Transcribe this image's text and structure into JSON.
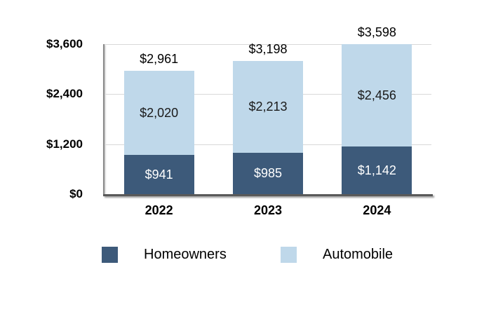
{
  "chart_data": {
    "type": "bar",
    "stacked": true,
    "categories": [
      "2022",
      "2023",
      "2024"
    ],
    "series": [
      {
        "name": "Homeowners",
        "color": "#3D5A7A",
        "label_color": "#FFFFFF",
        "values": [
          941,
          985,
          1142
        ],
        "labels": [
          "$941",
          "$985",
          "$1,142"
        ]
      },
      {
        "name": "Automobile",
        "color": "#BFD8EA",
        "label_color": "#1A1A1A",
        "values": [
          2020,
          2213,
          2456
        ],
        "labels": [
          "$2,020",
          "$2,213",
          "$2,456"
        ]
      }
    ],
    "totals": [
      2961,
      3198,
      3598
    ],
    "total_labels": [
      "$2,961",
      "$3,198",
      "$3,598"
    ],
    "y_axis": {
      "max": 3600,
      "ticks": [
        {
          "value": 0,
          "label": "$0"
        },
        {
          "value": 1200,
          "label": "$1,200"
        },
        {
          "value": 2400,
          "label": "$2,400"
        },
        {
          "value": 3600,
          "label": "$3,600"
        }
      ]
    },
    "grid": true,
    "legend_position": "bottom",
    "legend": [
      "Homeowners",
      "Automobile"
    ]
  },
  "colors": {
    "background": "#FFFFFF",
    "gridline": "#D9D9D9",
    "axis_vertical": "#8A8A8A",
    "axis_horizontal": "#595959",
    "text": "#000000"
  }
}
